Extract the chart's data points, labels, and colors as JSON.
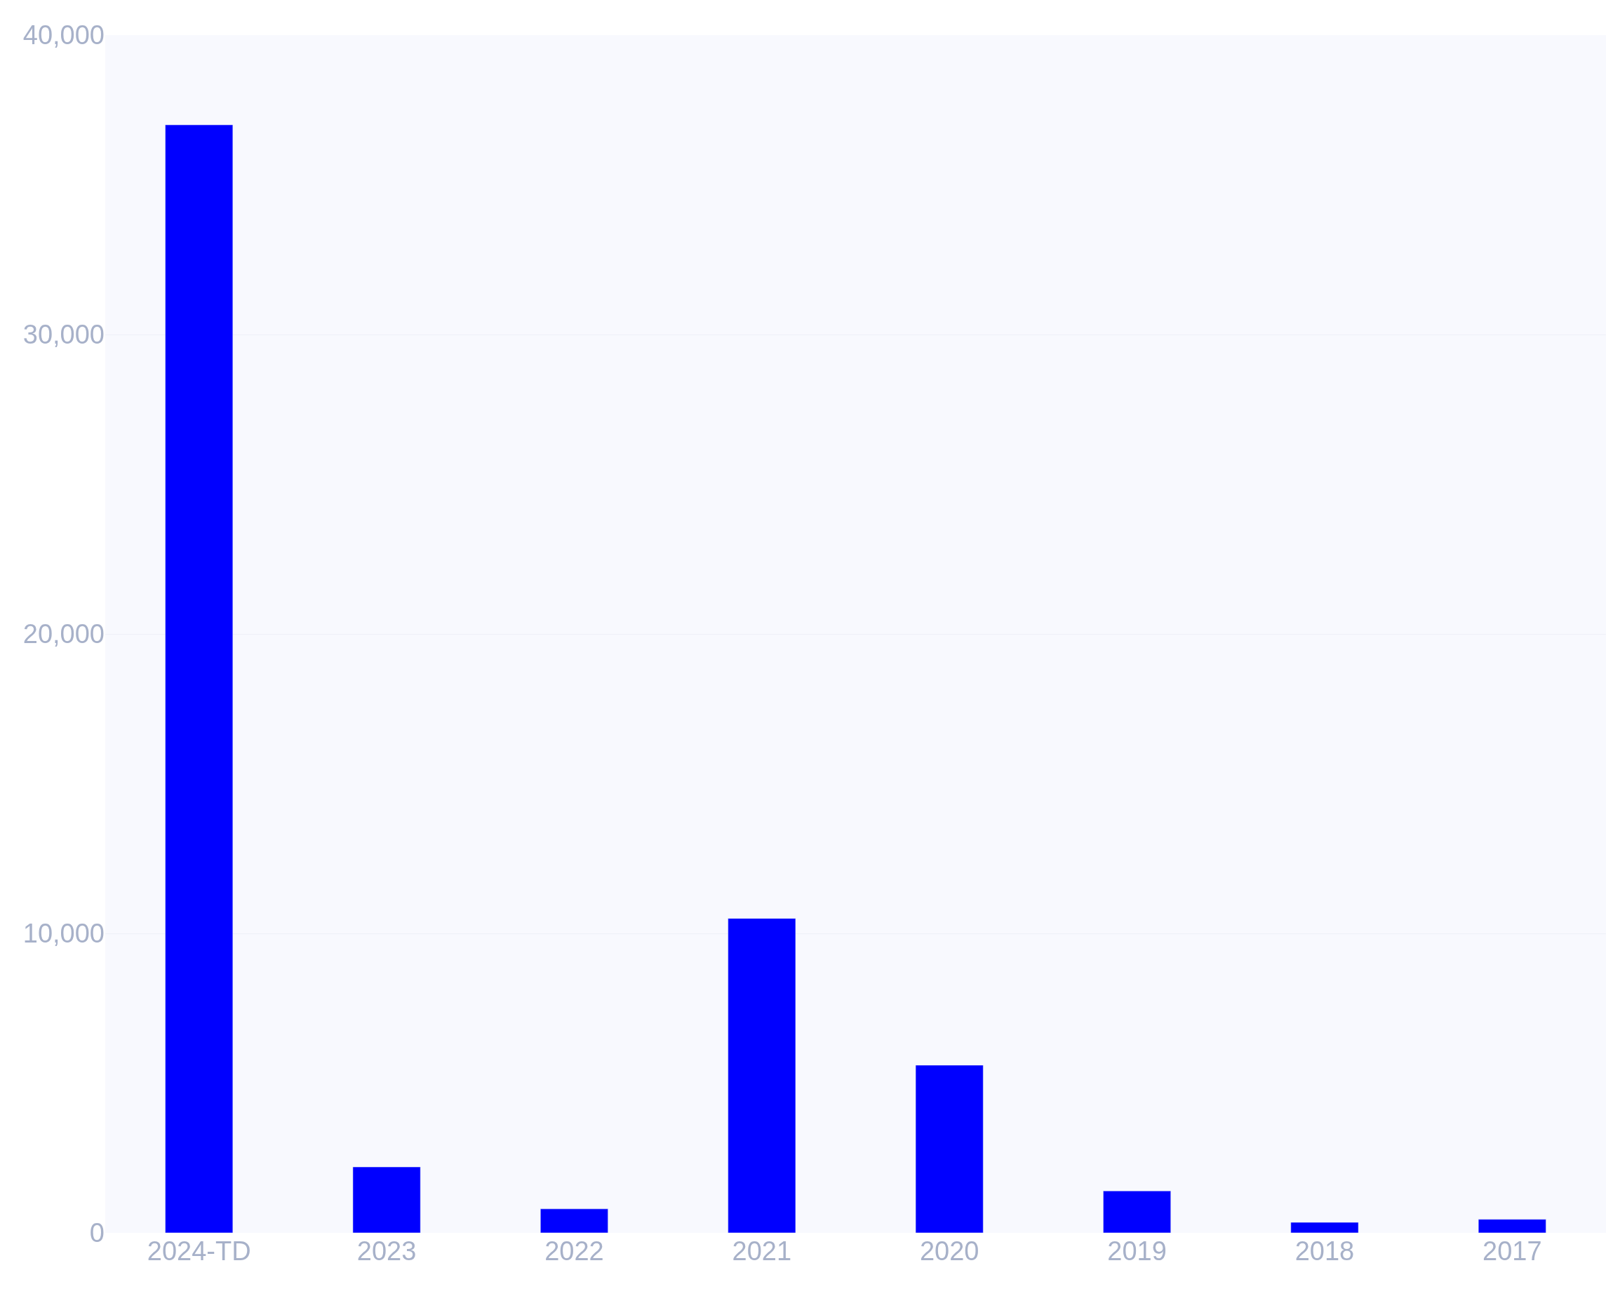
{
  "chart_data": {
    "type": "bar",
    "categories": [
      "2024-TD",
      "2023",
      "2022",
      "2021",
      "2020",
      "2019",
      "2018",
      "2017"
    ],
    "values": [
      37000,
      2200,
      800,
      10500,
      5600,
      1400,
      350,
      450
    ],
    "color": "#0000ff",
    "ylim": [
      0,
      40000
    ],
    "yticks": [
      0,
      {
        "value": 10000,
        "label": "10,000"
      },
      {
        "value": 20000,
        "label": "20,000"
      },
      {
        "value": 30000,
        "label": "30,000"
      },
      {
        "value": 40000,
        "label": "40,000"
      }
    ],
    "grid": "y"
  }
}
